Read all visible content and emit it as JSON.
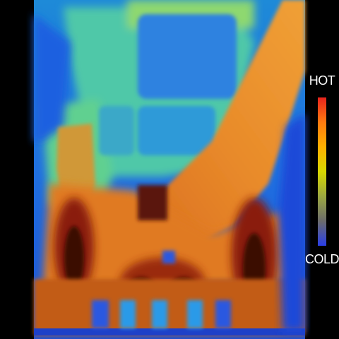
{
  "legend": {
    "hot_label": "HOT",
    "cold_label": "COLD",
    "scale_colors": [
      "#e8231c",
      "#ff7a10",
      "#ffb000",
      "#d8d800",
      "#9ca840",
      "#6c6c6c",
      "#2a3fe8"
    ]
  },
  "palette": {
    "background": "#000000",
    "ambient_blue": "#1a56d8",
    "cool_cyan": "#2aa0e0",
    "mid_green": "#5ed08a",
    "warm_orange": "#e88a2a",
    "hot_red": "#b42810",
    "core_dark": "#3a0a04"
  }
}
